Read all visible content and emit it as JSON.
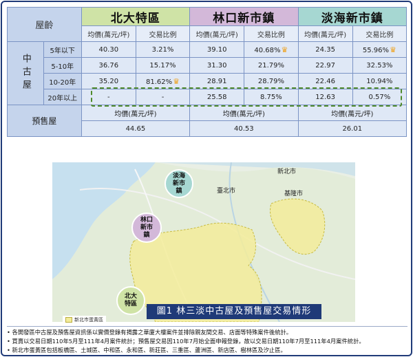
{
  "header": {
    "age_label": "屋齡",
    "areas": [
      "北大特區",
      "林口新市鎮",
      "淡海新市鎮"
    ],
    "col_price": "均價(萬元/坪)",
    "col_ratio": "交易比例"
  },
  "used_house_label": "中古屋",
  "presale_label": "預售屋",
  "rows": [
    {
      "age": "5年以下",
      "a_price": "40.30",
      "a_ratio": "3.21%",
      "b_price": "39.10",
      "b_ratio": "40.68%",
      "c_price": "24.35",
      "c_ratio": "55.96%"
    },
    {
      "age": "5-10年",
      "a_price": "36.76",
      "a_ratio": "15.17%",
      "b_price": "31.30",
      "b_ratio": "21.79%",
      "c_price": "22.97",
      "c_ratio": "32.53%"
    },
    {
      "age": "10-20年",
      "a_price": "35.20",
      "a_ratio": "81.62%",
      "b_price": "28.91",
      "b_ratio": "28.79%",
      "c_price": "22.46",
      "c_ratio": "10.94%"
    },
    {
      "age": "20年以上",
      "a_price": "-",
      "a_ratio": "-",
      "b_price": "25.58",
      "b_ratio": "8.75%",
      "c_price": "12.63",
      "c_ratio": "0.57%"
    }
  ],
  "presale": {
    "price_label": "均價(萬元/坪)",
    "a": "44.65",
    "b": "40.53",
    "c": "26.01"
  },
  "map": {
    "caption": "圖1  林三淡中古屋及預售屋交易情形",
    "legend": "新北市蛋黃區",
    "badge_tamsui": "淡海新市鎮",
    "badge_linkou": "林口新市鎮",
    "badge_beida": "北大特區",
    "label_newtaipei": "新北市",
    "label_taipei": "臺北市",
    "label_keelung": "基隆市"
  },
  "notes": [
    "各開發區中古屋及預售屋資訊係以實價登錄有揭露之華廈大樓案件並排除親友間交易、店面等特殊案件後統計。",
    "買賣以交易日期110年5月至111年4月案件統計；預售屋交易因110年7月始全面申報登錄，故以交易日期110年7月至111年4月案件統計。",
    "新北市蛋黃區包括板橋區、土城區、中和區、永和區、新莊區、三重區、蘆洲區、新店區、樹林區及汐止區。"
  ],
  "colors": {
    "frame": "#1f3a78",
    "beida": "#cfe3a6",
    "linkou": "#d3b8d9",
    "tamsui": "#a6d7d2",
    "crown": "#f0a21b",
    "yolk_area": "#f3ec9a"
  }
}
